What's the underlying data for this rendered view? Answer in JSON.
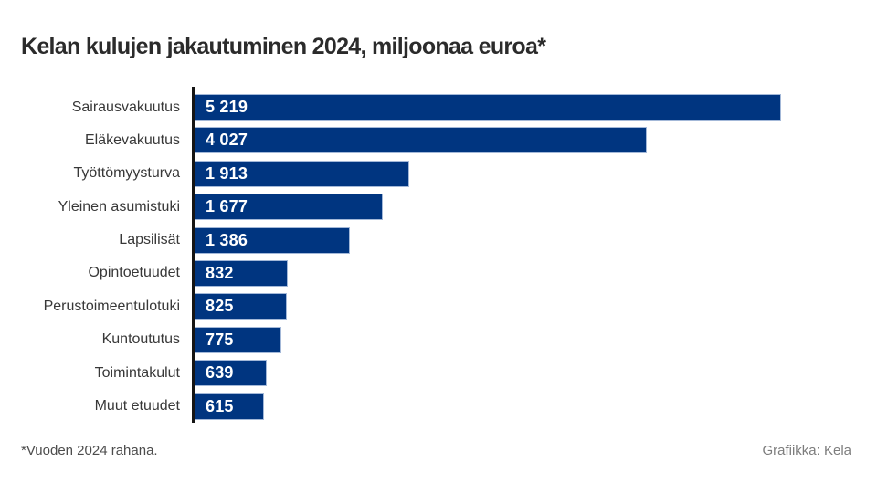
{
  "page": {
    "title": "Kelan kulujen jakautuminen 2024, miljoonaa euroa*",
    "footnote": "*Vuoden 2024 rahana.",
    "credit": "Grafiikka: Kela"
  },
  "colors": {
    "background": "#ffffff",
    "bar_fill": "#003580",
    "bar_border": "#a3b8d8",
    "axis": "#151515",
    "title_text": "#2b2b2b",
    "category_text": "#383838",
    "value_text": "#ffffff",
    "footnote_text": "#4c4c4c",
    "credit_text": "#7d7d7d"
  },
  "chart_data": {
    "type": "bar",
    "orientation": "horizontal",
    "title": "Kelan kulujen jakautuminen 2024, miljoonaa euroa*",
    "unit": "miljoonaa euroa",
    "categories": [
      "Sairausvakuutus",
      "Eläkevakuutus",
      "Työttömyysturva",
      "Yleinen asumistuki",
      "Lapsilisät",
      "Opintoetuudet",
      "Perustoimeentulotuki",
      "Kuntoututus",
      "Toimintakulut",
      "Muut etuudet"
    ],
    "values": [
      5219,
      4027,
      1913,
      1677,
      1386,
      832,
      825,
      775,
      639,
      615
    ],
    "value_labels": [
      "5 219",
      "4 027",
      "1 913",
      "1 677",
      "1 386",
      "832",
      "825",
      "775",
      "639",
      "615"
    ],
    "xlim": [
      0,
      5850
    ],
    "grid": false,
    "legend": false,
    "value_labels_inside_bars": true
  }
}
